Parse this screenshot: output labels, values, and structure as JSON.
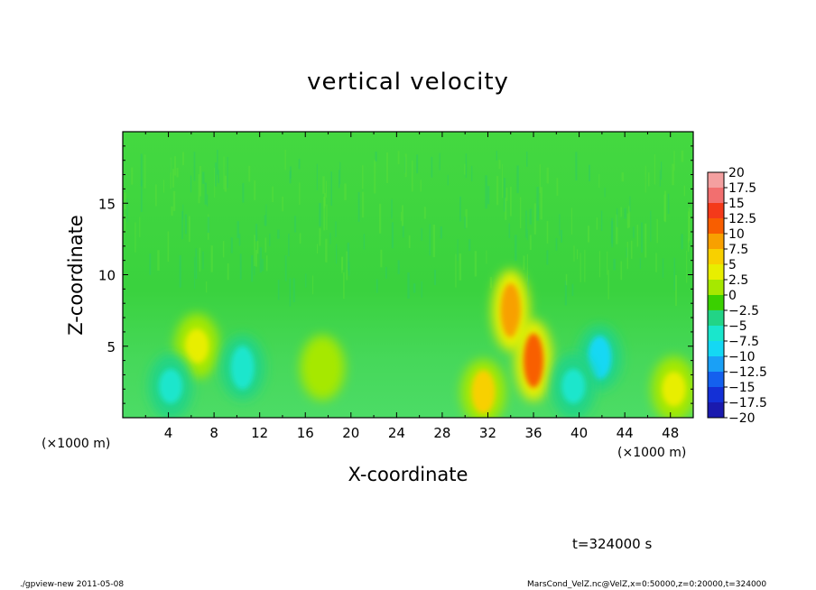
{
  "chart_data": {
    "type": "heatmap",
    "title": "vertical velocity",
    "xlabel": "X-coordinate",
    "ylabel": "Z-coordinate",
    "x_unit": "(×1000 m)",
    "x_unit_right": "(×1000 m)",
    "xlim": [
      0,
      50
    ],
    "ylim": [
      0,
      20
    ],
    "x_ticks": [
      4,
      8,
      12,
      16,
      20,
      24,
      28,
      32,
      36,
      40,
      44,
      48
    ],
    "y_ticks": [
      5,
      10,
      15
    ],
    "colorbar": {
      "levels": [
        20,
        17.5,
        15,
        12.5,
        10,
        7.5,
        5,
        2.5,
        0,
        -2.5,
        -5,
        -7.5,
        -10,
        -12.5,
        -15,
        -17.5,
        -20
      ],
      "colors": [
        "#f4a0a0",
        "#f26f6f",
        "#f43a1a",
        "#f85e00",
        "#f8a000",
        "#f8d000",
        "#e8ee00",
        "#a6e800",
        "#3ad000",
        "#22d486",
        "#1ae6cc",
        "#14d8f4",
        "#1aa0f6",
        "#1460ee",
        "#1430d6",
        "#1a1aae",
        "#5a10c8"
      ]
    },
    "features": [
      {
        "x": 34.0,
        "z": 7.5,
        "value": 10
      },
      {
        "x": 36.0,
        "z": 4.0,
        "value": 12
      },
      {
        "x": 31.6,
        "z": 1.8,
        "value": 8
      },
      {
        "x": 6.5,
        "z": 5.0,
        "value": 4
      },
      {
        "x": 17.5,
        "z": 3.5,
        "value": 3
      },
      {
        "x": 48.3,
        "z": 2.0,
        "value": 5
      },
      {
        "x": 4.2,
        "z": 2.2,
        "value": -5
      },
      {
        "x": 10.5,
        "z": 3.5,
        "value": -6
      },
      {
        "x": 41.8,
        "z": 4.2,
        "value": -7
      },
      {
        "x": 39.5,
        "z": 2.2,
        "value": -4
      }
    ]
  },
  "time_label": "t=324000 s",
  "footer": {
    "left": "./gpview-new  2011-05-08",
    "right": "MarsCond_VelZ.nc@VelZ,x=0:50000,z=0:20000,t=324000"
  }
}
